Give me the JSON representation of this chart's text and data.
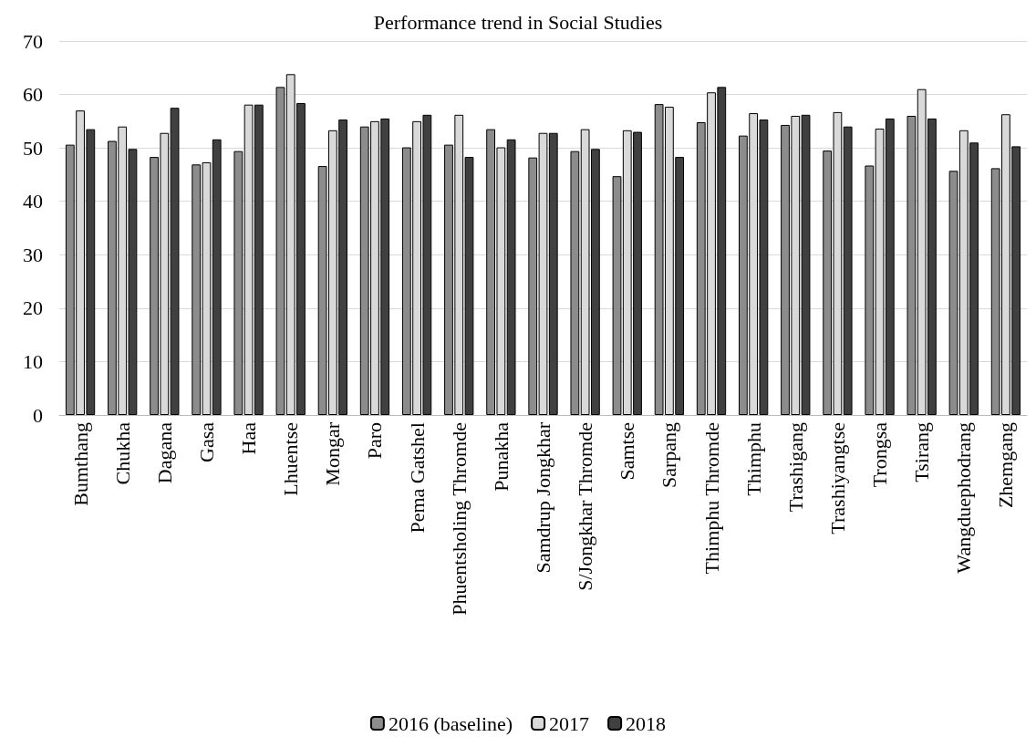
{
  "chart_data": {
    "type": "bar",
    "title": "Performance trend in Social Studies",
    "categories": [
      "Bumthang",
      "Chukha",
      "Dagana",
      "Gasa",
      "Haa",
      "Lhuentse",
      "Mongar",
      "Paro",
      "Pema Gatshel",
      "Phuentsholing Thromde",
      "Punakha",
      "Samdrup Jongkhar",
      "S/Jongkhar Thromde",
      "Samtse",
      "Sarpang",
      "Thimphu Thromde",
      "Thimphu",
      "Trashigang",
      "Trashiyangtse",
      "Trongsa",
      "Tsirang",
      "Wangduephodrang",
      "Zhemgang"
    ],
    "series": [
      {
        "name": "2016 (baseline)",
        "color": "#8c8c8c",
        "values": [
          50.6,
          51.3,
          48.3,
          46.9,
          49.4,
          61.4,
          46.6,
          54,
          50.1,
          50.6,
          53.5,
          48.2,
          49.4,
          44.7,
          58.2,
          54.8,
          52.3,
          54.3,
          49.5,
          46.7,
          56,
          45.7,
          46.2
        ]
      },
      {
        "name": "2017",
        "color": "#d9d9d9",
        "values": [
          57,
          54,
          52.8,
          47.3,
          58.1,
          63.8,
          53.3,
          55,
          55,
          56.2,
          50.1,
          52.8,
          53.5,
          53.3,
          57.7,
          60.4,
          56.5,
          56,
          56.7,
          53.6,
          61,
          53.3,
          56.3
        ]
      },
      {
        "name": "2018",
        "color": "#404040",
        "values": [
          53.5,
          49.8,
          57.5,
          51.6,
          58.1,
          58.4,
          55.3,
          55.5,
          56.2,
          48.3,
          51.6,
          52.8,
          49.8,
          53,
          48.3,
          61.4,
          55.3,
          56.2,
          54,
          55.5,
          55.5,
          51,
          50.3
        ]
      }
    ],
    "ylim": [
      0,
      70
    ],
    "yticks": [
      0,
      10,
      20,
      30,
      40,
      50,
      60,
      70
    ],
    "grid": "y",
    "legend": "bottom"
  }
}
